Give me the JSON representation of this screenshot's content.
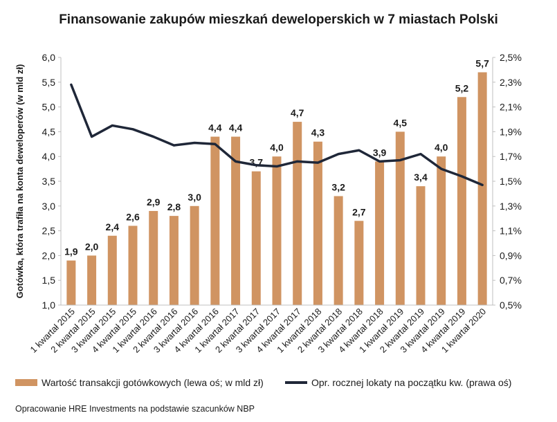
{
  "chart_data": {
    "type": "bar",
    "title": "Finansowanie zakupów mieszkań deweloperskich w 7 miastach Polski",
    "ylabel": "Gotówka, która trafiła na konta deweloperów (w mld zł)",
    "ylim": [
      1.0,
      6.0
    ],
    "y_ticks": [
      "1,0",
      "1,5",
      "2,0",
      "2,5",
      "3,0",
      "3,5",
      "4,0",
      "4,5",
      "5,0",
      "5,5",
      "6,0"
    ],
    "y2lim": [
      0.5,
      2.5
    ],
    "y2_ticks": [
      "0,5%",
      "0,7%",
      "0,9%",
      "1,1%",
      "1,3%",
      "1,5%",
      "1,7%",
      "1,9%",
      "2,1%",
      "2,3%",
      "2,5%"
    ],
    "categories": [
      "1 kwartał 2015",
      "2 kwartał 2015",
      "3 kwartał 2015",
      "4 kwartał 2015",
      "1 kwartał 2016",
      "2 kwartał 2016",
      "3 kwartał 2016",
      "4 kwartał 2016",
      "1 kwartał 2017",
      "2 kwartał 2017",
      "3 kwartał 2017",
      "4 kwartał 2017",
      "1 kwartał 2018",
      "2 kwartał 2018",
      "3 kwartał 2018",
      "4 kwartał 2018",
      "1 kwartał 2019",
      "2 kwartał 2019",
      "3 kwartał 2019",
      "4 kwartał 2019",
      "1 kwartał 2020"
    ],
    "series": [
      {
        "name": "Wartość transakcji gotówkowych (lewa oś; w mld zł)",
        "type": "bar",
        "axis": "left",
        "color": "#d09462",
        "values": [
          1.9,
          2.0,
          2.4,
          2.6,
          2.9,
          2.8,
          3.0,
          4.4,
          4.4,
          3.7,
          4.0,
          4.7,
          4.3,
          3.2,
          2.7,
          3.9,
          4.5,
          3.4,
          4.0,
          5.2,
          5.7
        ],
        "labels": [
          "1,9",
          "2,0",
          "2,4",
          "2,6",
          "2,9",
          "2,8",
          "3,0",
          "4,4",
          "4,4",
          "3,7",
          "4,0",
          "4,7",
          "4,3",
          "3,2",
          "2,7",
          "3,9",
          "4,5",
          "3,4",
          "4,0",
          "5,2",
          "5,7"
        ]
      },
      {
        "name": "Opr. rocznej lokaty na początku kw. (prawa oś)",
        "type": "line",
        "axis": "right",
        "color": "#1f2738",
        "values": [
          2.28,
          1.86,
          1.95,
          1.92,
          1.86,
          1.79,
          1.81,
          1.8,
          1.66,
          1.63,
          1.62,
          1.66,
          1.65,
          1.72,
          1.75,
          1.66,
          1.67,
          1.72,
          1.6,
          1.54,
          1.47
        ]
      }
    ],
    "grid": false,
    "legend_position": "bottom"
  },
  "source": "Opracowanie HRE Investments na podstawie szacunków NBP"
}
